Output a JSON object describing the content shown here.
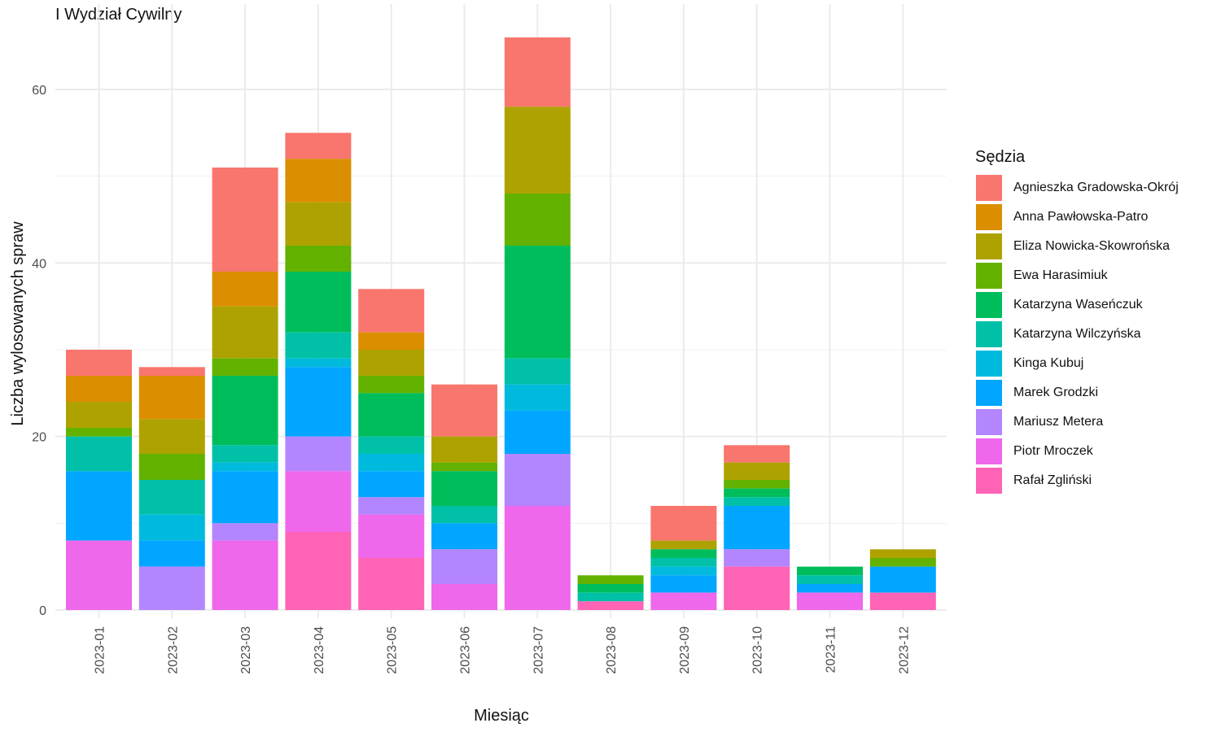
{
  "chart_data": {
    "type": "bar",
    "stacked": true,
    "title": "I Wydział Cywilny",
    "xlabel": "Miesiąc",
    "ylabel": "Liczba wylosowanych spraw",
    "legend_title": "Sędzia",
    "legend_position": "right",
    "ylim": [
      0,
      69
    ],
    "yticks": [
      0,
      20,
      40,
      60
    ],
    "grid": true,
    "categories": [
      "2023-01",
      "2023-02",
      "2023-03",
      "2023-04",
      "2023-05",
      "2023-06",
      "2023-07",
      "2023-08",
      "2023-09",
      "2023-10",
      "2023-11",
      "2023-12"
    ],
    "series": [
      {
        "name": "Agnieszka Gradowska-Okrój",
        "color": "#F8766D",
        "values": [
          3,
          1,
          12,
          3,
          5,
          6,
          8,
          0,
          4,
          2,
          0,
          0
        ]
      },
      {
        "name": "Anna Pawłowska-Patro",
        "color": "#DB8E00",
        "values": [
          3,
          5,
          4,
          5,
          2,
          0,
          0,
          0,
          0,
          0,
          0,
          0
        ]
      },
      {
        "name": "Eliza Nowicka-Skowrońska",
        "color": "#AEA200",
        "values": [
          3,
          4,
          6,
          5,
          3,
          3,
          10,
          0,
          1,
          2,
          0,
          1
        ]
      },
      {
        "name": "Ewa Harasimiuk",
        "color": "#64B200",
        "values": [
          1,
          3,
          2,
          3,
          2,
          1,
          6,
          1,
          0,
          1,
          0,
          1
        ]
      },
      {
        "name": "Katarzyna Waseńczuk",
        "color": "#00BD5C",
        "values": [
          0,
          0,
          8,
          7,
          5,
          4,
          13,
          1,
          1,
          1,
          1,
          0
        ]
      },
      {
        "name": "Katarzyna Wilczyńska",
        "color": "#00C1A7",
        "values": [
          4,
          4,
          2,
          3,
          2,
          2,
          3,
          1,
          1,
          1,
          1,
          0
        ]
      },
      {
        "name": "Kinga Kubuj",
        "color": "#00BADE",
        "values": [
          0,
          3,
          1,
          1,
          2,
          0,
          3,
          0,
          1,
          0,
          0,
          0
        ]
      },
      {
        "name": "Marek Grodzki",
        "color": "#00A6FF",
        "values": [
          8,
          3,
          6,
          8,
          3,
          3,
          5,
          0,
          2,
          5,
          1,
          3
        ]
      },
      {
        "name": "Mariusz Metera",
        "color": "#B385FF",
        "values": [
          0,
          5,
          2,
          4,
          2,
          4,
          6,
          0,
          0,
          2,
          0,
          0
        ]
      },
      {
        "name": "Piotr Mroczek",
        "color": "#EF67EB",
        "values": [
          8,
          0,
          8,
          7,
          5,
          3,
          12,
          0,
          2,
          0,
          2,
          0
        ]
      },
      {
        "name": "Rafał Zgliński",
        "color": "#FF63B6",
        "values": [
          0,
          0,
          0,
          9,
          6,
          0,
          0,
          1,
          0,
          5,
          0,
          2
        ]
      }
    ]
  }
}
